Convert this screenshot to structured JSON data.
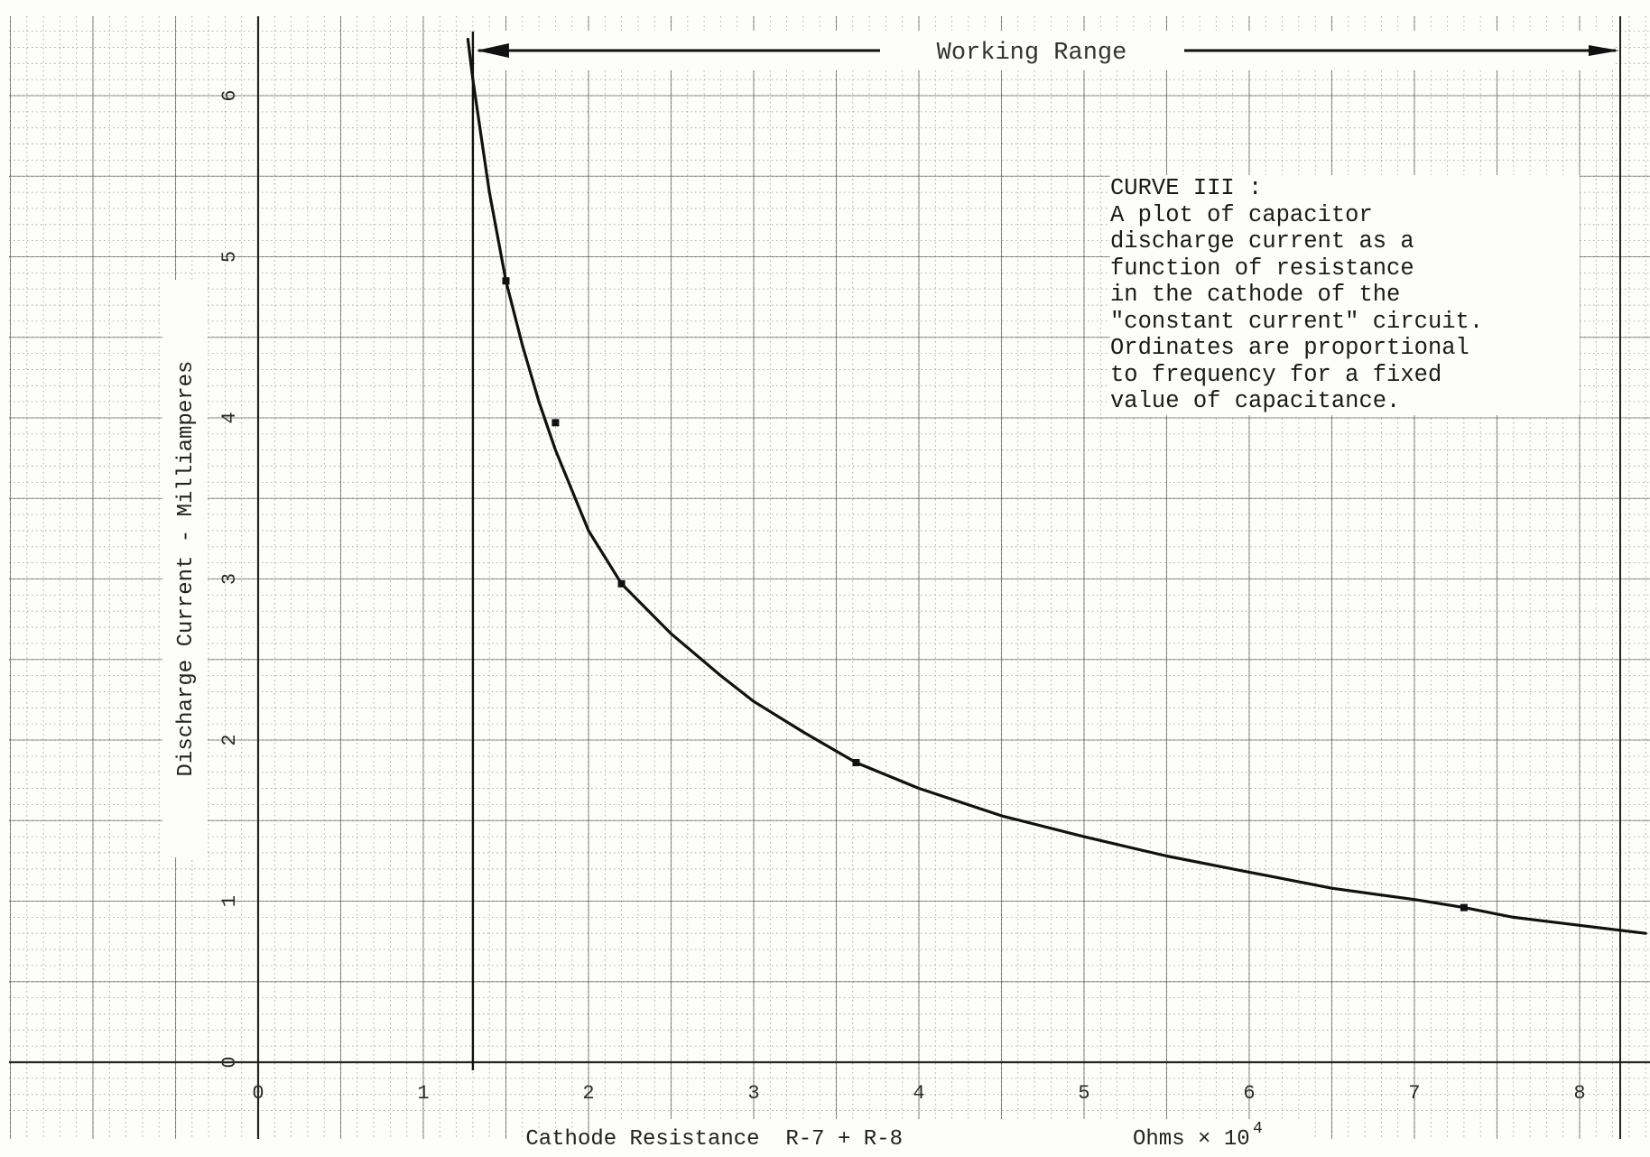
{
  "chart_data": {
    "type": "line",
    "title": "",
    "xlabel": "Cathode Resistance  R-7 + R-8",
    "xlabel_units": "Ohms × 10",
    "xlabel_units_exponent": "4",
    "ylabel": "Discharge Current - Milliamperes",
    "xlim": [
      0,
      8.4
    ],
    "ylim": [
      0,
      6.5
    ],
    "x_ticks": [
      "0",
      "1",
      "2",
      "3",
      "4",
      "5",
      "6",
      "7",
      "8"
    ],
    "y_ticks": [
      "0",
      "1",
      "2",
      "3",
      "4",
      "5",
      "6"
    ],
    "grid": true,
    "series": [
      {
        "curve": [
          [
            1.27,
            6.35
          ],
          [
            1.3,
            6.1
          ],
          [
            1.35,
            5.75
          ],
          [
            1.4,
            5.4
          ],
          [
            1.5,
            4.85
          ],
          [
            1.6,
            4.45
          ],
          [
            1.7,
            4.1
          ],
          [
            1.8,
            3.8
          ],
          [
            2.0,
            3.3
          ],
          [
            2.2,
            2.97
          ],
          [
            2.5,
            2.66
          ],
          [
            2.8,
            2.4
          ],
          [
            3.0,
            2.24
          ],
          [
            3.3,
            2.05
          ],
          [
            3.62,
            1.86
          ],
          [
            4.0,
            1.7
          ],
          [
            4.5,
            1.53
          ],
          [
            5.0,
            1.4
          ],
          [
            5.5,
            1.28
          ],
          [
            6.0,
            1.18
          ],
          [
            6.5,
            1.08
          ],
          [
            7.0,
            1.01
          ],
          [
            7.3,
            0.96
          ],
          [
            7.6,
            0.9
          ],
          [
            8.0,
            0.85
          ],
          [
            8.4,
            0.8
          ]
        ],
        "points": [
          [
            1.5,
            4.85
          ],
          [
            1.8,
            3.97
          ],
          [
            2.2,
            2.97
          ],
          [
            3.62,
            1.86
          ],
          [
            7.3,
            0.96
          ]
        ]
      }
    ],
    "working_range": {
      "label": "Working Range",
      "x_start": 1.3,
      "x_end": 8.4
    },
    "annotation": "CURVE III :\nA plot of capacitor\ndischarge current as a\nfunction of resistance\nin the cathode of the\n\"constant current\" circuit.\nOrdinates are proportional\nto frequency for a fixed\nvalue of capacitance."
  },
  "colors": {
    "paper": "#fdfdfb",
    "grid_major": "#3a3a3a",
    "grid_minor": "#9a9a9a",
    "curve": "#111111",
    "text": "#1a1a1a"
  }
}
